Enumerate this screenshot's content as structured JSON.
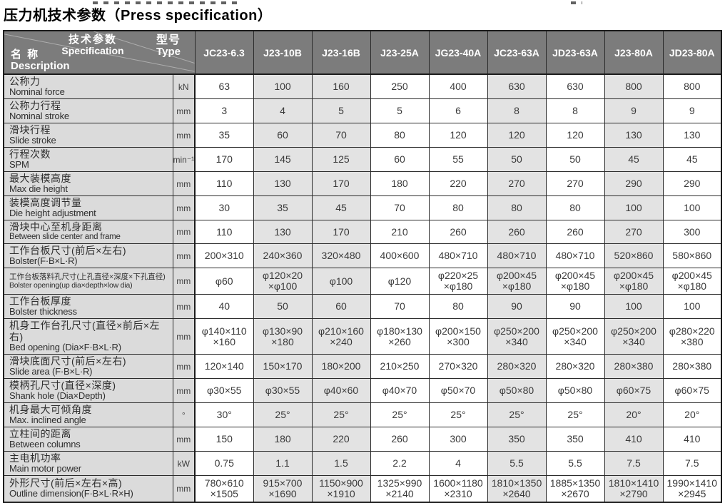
{
  "title": "压力机技术参数（Press specification）",
  "table": {
    "corner": {
      "spec_zh": "技术参数",
      "spec_en": "Specification",
      "type_zh": "型号",
      "type_en": "Type",
      "name_zh": "名 称",
      "name_en": "Description"
    },
    "models": [
      "JC23-6.3",
      "J23-10B",
      "J23-16B",
      "J23-25A",
      "JG23-40A",
      "JC23-63A",
      "JD23-63A",
      "J23-80A",
      "JD23-80A"
    ],
    "shaded_model_columns": [
      1,
      2,
      5,
      7
    ],
    "rows": [
      {
        "zh": "公称力",
        "en": "Nominal force",
        "unit": "kN",
        "values": [
          "63",
          "100",
          "160",
          "250",
          "400",
          "630",
          "630",
          "800",
          "800"
        ]
      },
      {
        "zh": "公称力行程",
        "en": "Nominal stroke",
        "unit": "mm",
        "values": [
          "3",
          "4",
          "5",
          "5",
          "6",
          "8",
          "8",
          "9",
          "9"
        ]
      },
      {
        "zh": "滑块行程",
        "en": "Slide stroke",
        "unit": "mm",
        "values": [
          "35",
          "60",
          "70",
          "80",
          "120",
          "120",
          "120",
          "130",
          "130"
        ]
      },
      {
        "zh": "行程次数",
        "en": "SPM",
        "unit": "min⁻¹",
        "values": [
          "170",
          "145",
          "125",
          "60",
          "55",
          "50",
          "50",
          "45",
          "45"
        ]
      },
      {
        "zh": "最大装模高度",
        "en": "Max die height",
        "unit": "mm",
        "values": [
          "110",
          "130",
          "170",
          "180",
          "220",
          "270",
          "270",
          "290",
          "290"
        ]
      },
      {
        "zh": "装模高度调节量",
        "en": "Die height adjustment",
        "unit": "mm",
        "values": [
          "30",
          "35",
          "45",
          "70",
          "80",
          "80",
          "80",
          "100",
          "100"
        ]
      },
      {
        "zh": "滑块中心至机身距离",
        "en": "Between slide center and frame",
        "unit": "mm",
        "en_small": true,
        "values": [
          "110",
          "130",
          "170",
          "210",
          "260",
          "260",
          "260",
          "270",
          "300"
        ]
      },
      {
        "zh": "工作台板尺寸(前后×左右)",
        "en": "Bolster(F·B×L·R)",
        "unit": "mm",
        "values": [
          "200×310",
          "240×360",
          "320×480",
          "400×600",
          "480×710",
          "480×710",
          "480×710",
          "520×860",
          "580×860"
        ]
      },
      {
        "zh": "工作台板落料孔尺寸(上孔直径×深度×下孔直径)",
        "en": "Bolster opening(up dia×depth×low dia)",
        "unit": "mm",
        "small": true,
        "values": [
          "φ60",
          "φ120×20\n×φ100",
          "φ100",
          "φ120",
          "φ220×25\n×φ180",
          "φ200×45\n×φ180",
          "φ200×45\n×φ180",
          "φ200×45\n×φ180",
          "φ200×45\n×φ180"
        ]
      },
      {
        "zh": "工作台板厚度",
        "en": "Bolster thickness",
        "unit": "mm",
        "values": [
          "40",
          "50",
          "60",
          "70",
          "80",
          "90",
          "90",
          "100",
          "100"
        ]
      },
      {
        "zh": "机身工作台孔尺寸(直径×前后×左右)",
        "en": "Bed opening (Dia×F·B×L·R)",
        "unit": "mm",
        "values": [
          "φ140×110\n×160",
          "φ130×90\n×180",
          "φ210×160\n×240",
          "φ180×130\n×260",
          "φ200×150\n×300",
          "φ250×200\n×340",
          "φ250×200\n×340",
          "φ250×200\n×340",
          "φ280×220\n×380"
        ]
      },
      {
        "zh": "滑块底面尺寸(前后×左右)",
        "en": "Slide area (F·B×L·R)",
        "unit": "mm",
        "values": [
          "120×140",
          "150×170",
          "180×200",
          "210×250",
          "270×320",
          "280×320",
          "280×320",
          "280×380",
          "280×380"
        ]
      },
      {
        "zh": "模柄孔尺寸(直径×深度)",
        "en": "Shank hole (Dia×Depth)",
        "unit": "mm",
        "values": [
          "φ30×55",
          "φ30×55",
          "φ40×60",
          "φ40×70",
          "φ50×70",
          "φ50×80",
          "φ50×80",
          "φ60×75",
          "φ60×75"
        ]
      },
      {
        "zh": "机身最大可倾角度",
        "en": "Max. inclined angle",
        "unit": "°",
        "values": [
          "30°",
          "25°",
          "25°",
          "25°",
          "25°",
          "25°",
          "25°",
          "20°",
          "20°"
        ]
      },
      {
        "zh": "立柱间的距离",
        "en": "Between columns",
        "unit": "mm",
        "values": [
          "150",
          "180",
          "220",
          "260",
          "300",
          "350",
          "350",
          "410",
          "410"
        ]
      },
      {
        "zh": "主电机功率",
        "en": "Main motor power",
        "unit": "kW",
        "values": [
          "0.75",
          "1.1",
          "1.5",
          "2.2",
          "4",
          "5.5",
          "5.5",
          "7.5",
          "7.5"
        ]
      },
      {
        "zh": "外形尺寸(前后×左右×高)",
        "en": "Outline dimension(F·B×L·R×H)",
        "unit": "mm",
        "values": [
          "780×610\n×1505",
          "915×700\n×1690",
          "1150×900\n×1910",
          "1325×990\n×2140",
          "1600×1180\n×2310",
          "1810×1350\n×2640",
          "1885×1350\n×2670",
          "1810×1410\n×2790",
          "1990×1410\n×2945"
        ]
      }
    ]
  },
  "colors": {
    "header_bg": "#7c7c7c",
    "header_text": "#ffffff",
    "label_bg": "#dbdbdb",
    "shaded_cell_bg": "#e3e3e3",
    "grid_line": "#2b2b2b",
    "body_text": "#3a3a3a"
  }
}
